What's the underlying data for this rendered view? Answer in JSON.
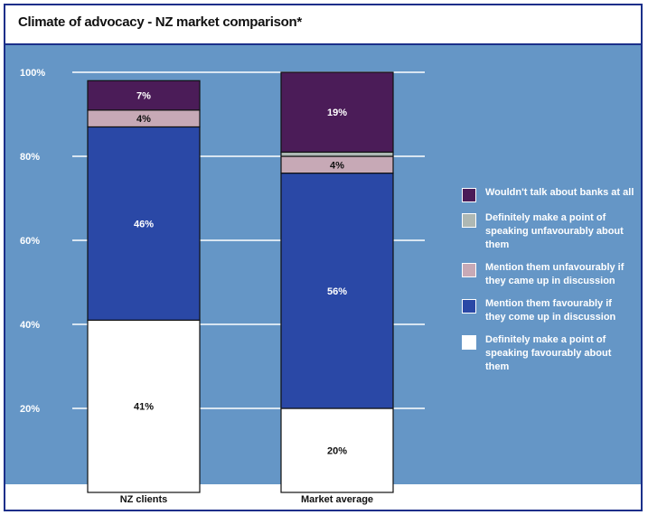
{
  "chart_data": {
    "type": "bar",
    "stacked": true,
    "title": "Climate of advocacy - NZ market comparison*",
    "categories": [
      "NZ clients",
      "Market average"
    ],
    "ylim": [
      0,
      100
    ],
    "yticks": [
      "100%",
      "80%",
      "60%",
      "40%",
      "20%"
    ],
    "ytick_values": [
      100,
      80,
      60,
      40,
      20
    ],
    "grid": true,
    "legend_position": "right",
    "series": [
      {
        "name": "Definitely make a point of speaking favourably about them",
        "color": "#ffffff",
        "values": [
          41,
          20
        ],
        "labels": [
          "41%",
          "20%"
        ]
      },
      {
        "name": "Mention them favourably if they come up in discussion",
        "color": "#2a48a6",
        "values": [
          46,
          56
        ],
        "labels": [
          "46%",
          "56%"
        ]
      },
      {
        "name": "Mention them unfavourably if they came up in discussion",
        "color": "#c7a9b6",
        "values": [
          4,
          4
        ],
        "labels": [
          "4%",
          "4%"
        ]
      },
      {
        "name": "Definitely make a point of speaking unfavourably about them",
        "color": "#aeb8b4",
        "values": [
          0,
          1
        ],
        "labels": [
          "",
          ""
        ]
      },
      {
        "name": "Wouldn't talk about banks at all",
        "color": "#4b1c58",
        "values": [
          7,
          19
        ],
        "labels": [
          "7%",
          "19%"
        ]
      }
    ]
  },
  "legend_order": [
    4,
    3,
    2,
    1,
    0
  ],
  "colors": {
    "plot_bg": "#6596c6",
    "frame": "#1b2f8a",
    "grid": "#ffffff"
  }
}
